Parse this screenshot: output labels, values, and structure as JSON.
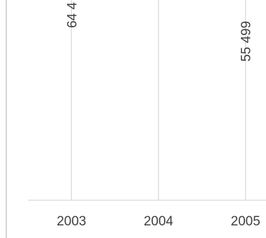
{
  "chart_data": {
    "type": "line",
    "categories": [
      "2003",
      "2004",
      "2005"
    ],
    "data_labels": [
      {
        "category": "2003",
        "text": "64 4"
      },
      {
        "category": "2005",
        "text": "55 499"
      }
    ],
    "legend": "none",
    "grid": "vertical",
    "colors": {
      "gridline": "#d9d9d9",
      "axis": "#d9d9d9",
      "text": "#404040",
      "frame": "#bfbfbf"
    }
  }
}
